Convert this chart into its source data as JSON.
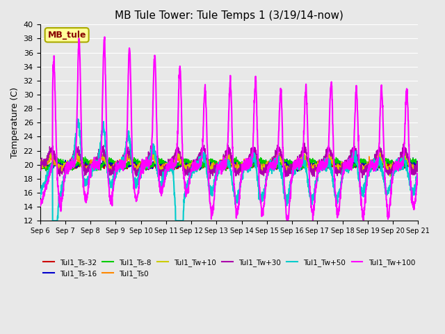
{
  "title": "MB Tule Tower: Tule Temps 1 (3/19/14-now)",
  "ylabel": "Temperature (C)",
  "xlim_days": [
    0,
    15
  ],
  "ylim": [
    12,
    40
  ],
  "yticks": [
    12,
    14,
    16,
    18,
    20,
    22,
    24,
    26,
    28,
    30,
    32,
    34,
    36,
    38,
    40
  ],
  "x_tick_labels": [
    "Sep 6",
    "Sep 7",
    "Sep 8",
    "Sep 9",
    "Sep 10",
    "Sep 11",
    "Sep 12",
    "Sep 13",
    "Sep 14",
    "Sep 15",
    "Sep 16",
    "Sep 17",
    "Sep 18",
    "Sep 19",
    "Sep 20",
    "Sep 21"
  ],
  "background_color": "#e8e8e8",
  "grid_color": "#ffffff",
  "annotation_box": {
    "text": "MB_tule",
    "color": "#880000",
    "bg": "#ffff99",
    "border": "#aaaa00"
  },
  "series": [
    {
      "label": "Tul1_Ts-32",
      "color": "#cc0000",
      "lw": 1.0
    },
    {
      "label": "Tul1_Ts-16",
      "color": "#0000cc",
      "lw": 1.0
    },
    {
      "label": "Tul1_Ts-8",
      "color": "#00cc00",
      "lw": 1.0
    },
    {
      "label": "Tul1_Ts0",
      "color": "#ff8800",
      "lw": 1.0
    },
    {
      "label": "Tul1_Tw+10",
      "color": "#cccc00",
      "lw": 1.0
    },
    {
      "label": "Tul1_Tw+30",
      "color": "#aa00aa",
      "lw": 1.0
    },
    {
      "label": "Tul1_Tw+50",
      "color": "#00cccc",
      "lw": 1.5
    },
    {
      "label": "Tul1_Tw+100",
      "color": "#ff00ff",
      "lw": 1.5
    }
  ]
}
